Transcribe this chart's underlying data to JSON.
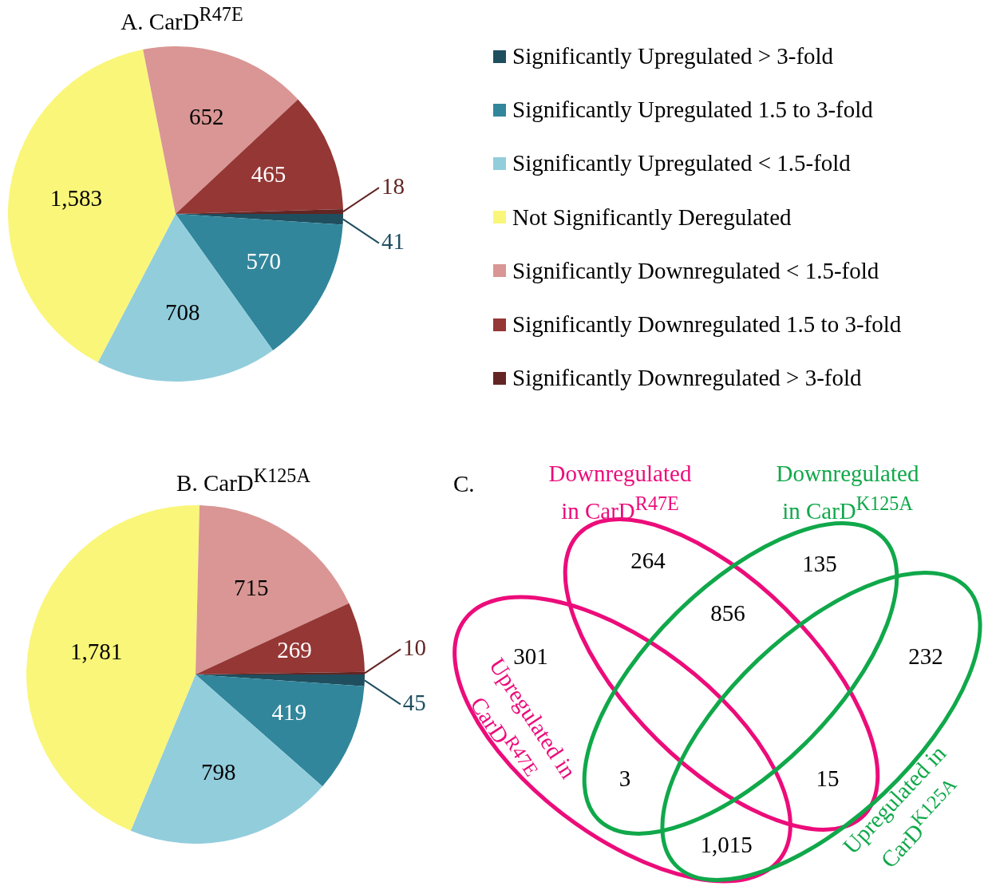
{
  "chart_data": [
    {
      "type": "pie",
      "title": "A. CarD$^{R47E}$",
      "categories": [
        "Significantly Upregulated > 3-fold",
        "Significantly Upregulated 1.5 to 3-fold",
        "Significantly Upregulated < 1.5-fold",
        "Not Significantly Deregulated",
        "Significantly Downregulated < 1.5-fold",
        "Significantly Downregulated 1.5 to 3-fold",
        "Significantly Downregulated > 3-fold"
      ],
      "values": [
        41,
        570,
        708,
        1583,
        652,
        465,
        18
      ],
      "value_labels": [
        "41",
        "570",
        "708",
        "1,583",
        "652",
        "465",
        "18"
      ],
      "colors": [
        "#1f4e5f",
        "#31869b",
        "#92cddc",
        "#faf67a",
        "#d99694",
        "#953735",
        "#632523"
      ],
      "legend": "right"
    },
    {
      "type": "pie",
      "title": "B. CarD$^{K125A}$",
      "categories": [
        null,
        null,
        null,
        null,
        null,
        null,
        null
      ],
      "values": [
        45,
        419,
        798,
        1781,
        715,
        269,
        10
      ],
      "value_labels": [
        "45",
        "419",
        "798",
        "1,781",
        "715",
        "269",
        "10"
      ],
      "colors": [
        "#1f4e5f",
        "#31869b",
        "#92cddc",
        "#faf67a",
        "#d99694",
        "#953735",
        "#632523"
      ]
    },
    {
      "type": "other",
      "title": "C.",
      "series": [
        {
          "name": "Upregulated in CarD$^{R47E}$",
          "color": "#ec0c7a"
        },
        {
          "name": "Downregulated in CarD$^{R47E}$",
          "color": "#ec0c7a"
        },
        {
          "name": "Downregulated in CarD$^{K125A}$",
          "color": "#10a84a"
        },
        {
          "name": "Upregulated in CarD$^{K125A}$",
          "color": "#10a84a"
        }
      ],
      "annotations": [
        "301",
        "264",
        "135",
        "232",
        "856",
        "3",
        "15",
        "1,015"
      ]
    }
  ]
}
